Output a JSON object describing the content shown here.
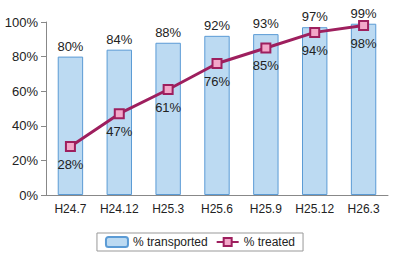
{
  "chart_data": {
    "type": "bar",
    "categories": [
      "H24.7",
      "H24.12",
      "H25.3",
      "H25.6",
      "H25.9",
      "H25.12",
      "H26.3"
    ],
    "series": [
      {
        "name": "% transported",
        "type": "bar",
        "color": "#bcdaf2",
        "values": [
          80,
          84,
          88,
          92,
          93,
          97,
          99
        ],
        "value_labels": [
          "80%",
          "84%",
          "88%",
          "92%",
          "93%",
          "97%",
          "99%"
        ]
      },
      {
        "name": "% treated",
        "type": "line",
        "color": "#9e1f5e",
        "marker": "square",
        "values": [
          28,
          47,
          61,
          76,
          85,
          94,
          98
        ],
        "value_labels": [
          "28%",
          "47%",
          "61%",
          "76%",
          "85%",
          "94%",
          "98%"
        ]
      }
    ],
    "ylim": [
      0,
      100
    ],
    "yticks": [
      {
        "value": 0,
        "label": "0%"
      },
      {
        "value": 20,
        "label": "20%"
      },
      {
        "value": 40,
        "label": "40%"
      },
      {
        "value": 60,
        "label": "60%"
      },
      {
        "value": 80,
        "label": "80%"
      },
      {
        "value": 100,
        "label": "100%"
      }
    ],
    "grid": false,
    "legend": "bottom",
    "data_labels": true
  }
}
